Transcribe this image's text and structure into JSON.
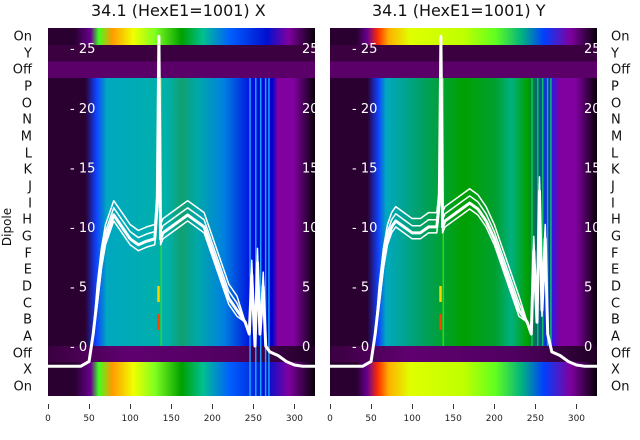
{
  "chart_data": [
    {
      "type": "heatmap",
      "title": "34.1 (HexE1=1001) X",
      "ylabel": "Dipole",
      "row_labels": [
        "On",
        "Y",
        "Off",
        "P",
        "O",
        "N",
        "M",
        "L",
        "K",
        "J",
        "I",
        "H",
        "G",
        "F",
        "E",
        "D",
        "C",
        "B",
        "A",
        "Off",
        "X",
        "On"
      ],
      "xticks": [
        0,
        50,
        100,
        150,
        200,
        250,
        300
      ],
      "xlim": [
        0,
        325
      ],
      "yticks": [
        25,
        20,
        15,
        10,
        5,
        0
      ],
      "ylim": [
        -4.2,
        26.7
      ],
      "overlay": {
        "type": "line",
        "color": "#ffffff",
        "x": [
          0,
          40,
          50,
          55,
          60,
          65,
          70,
          75,
          80,
          90,
          100,
          110,
          120,
          130,
          133,
          135,
          137,
          140,
          150,
          160,
          170,
          180,
          190,
          200,
          210,
          220,
          230,
          240,
          245,
          248,
          252,
          255,
          258,
          262,
          265,
          270,
          280,
          290,
          300,
          310,
          325
        ],
        "y": [
          -1.7,
          -1.7,
          -1.3,
          1,
          4,
          7,
          9,
          10,
          11,
          10,
          9,
          8.5,
          8.8,
          9,
          12,
          26,
          9,
          9.5,
          10,
          10.5,
          11,
          10.5,
          10,
          8,
          6,
          4,
          3,
          2,
          1,
          6,
          0,
          7,
          1,
          5,
          0,
          -0.5,
          -0.8,
          -1.3,
          -1.6,
          -1.7,
          -1.7
        ]
      }
    },
    {
      "type": "heatmap",
      "title": "34.1 (HexE1=1001) Y",
      "row_labels": [
        "On",
        "Y",
        "Off",
        "P",
        "O",
        "N",
        "M",
        "L",
        "K",
        "J",
        "I",
        "H",
        "G",
        "F",
        "E",
        "D",
        "C",
        "B",
        "A",
        "Off",
        "X",
        "On"
      ],
      "xticks": [
        0,
        50,
        100,
        150,
        200,
        250,
        300
      ],
      "xlim": [
        0,
        325
      ],
      "yticks": [
        25,
        20,
        15,
        10,
        5,
        0
      ],
      "ylim": [
        -4.2,
        26.7
      ],
      "overlay": {
        "type": "line",
        "color": "#ffffff",
        "x": [
          0,
          40,
          50,
          55,
          60,
          65,
          70,
          75,
          80,
          90,
          100,
          110,
          120,
          130,
          133,
          135,
          137,
          140,
          150,
          160,
          170,
          180,
          190,
          200,
          210,
          220,
          230,
          240,
          245,
          248,
          252,
          255,
          258,
          262,
          265,
          270,
          280,
          290,
          300,
          310,
          325
        ],
        "y": [
          -1.7,
          -1.7,
          -1.3,
          1,
          4,
          7,
          9,
          10,
          10.5,
          10,
          9.5,
          9.5,
          10,
          10,
          12,
          26,
          10,
          10.5,
          11,
          11.5,
          12,
          11.5,
          10.5,
          9,
          7,
          5,
          3,
          2,
          1,
          8,
          2,
          13,
          3,
          9,
          1,
          -0.5,
          -0.8,
          -1.3,
          -1.6,
          -1.7,
          -1.7
        ]
      }
    }
  ]
}
